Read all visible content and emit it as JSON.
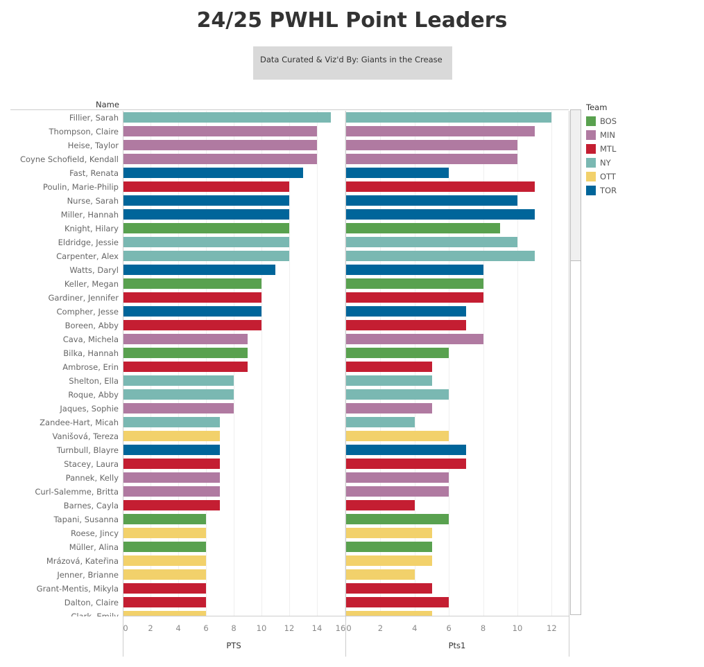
{
  "title": "24/25 PWHL Point Leaders",
  "credit": "Data Curated & Viz'd By: Giants in the Crease",
  "name_header": "Name",
  "legend": {
    "title": "Team",
    "items": [
      {
        "team": "BOS",
        "color": "#59a14f"
      },
      {
        "team": "MIN",
        "color": "#b07aa1"
      },
      {
        "team": "MTL",
        "color": "#c41e32"
      },
      {
        "team": "NY",
        "color": "#7ab8b2"
      },
      {
        "team": "OTT",
        "color": "#f2d16b"
      },
      {
        "team": "TOR",
        "color": "#00659a"
      }
    ]
  },
  "chart_data": {
    "type": "bar",
    "orientation": "horizontal",
    "series": [
      {
        "name": "PTS",
        "axis_title": "PTS",
        "xlim": [
          0,
          16
        ],
        "ticks": [
          0,
          2,
          4,
          6,
          8,
          10,
          12,
          14,
          16
        ]
      },
      {
        "name": "Pts1",
        "axis_title": "Pts1",
        "xlim": [
          0,
          13
        ],
        "ticks": [
          0,
          2,
          4,
          6,
          8,
          10,
          12
        ]
      }
    ],
    "rows": [
      [
        "Fillier, Sarah",
        "NY",
        15,
        12
      ],
      [
        "Thompson, Claire",
        "MIN",
        14,
        11
      ],
      [
        "Heise, Taylor",
        "MIN",
        14,
        10
      ],
      [
        "Coyne Schofield, Kendall",
        "MIN",
        14,
        10
      ],
      [
        "Fast, Renata",
        "TOR",
        13,
        6
      ],
      [
        "Poulin, Marie-Philip",
        "MTL",
        12,
        11
      ],
      [
        "Nurse, Sarah",
        "TOR",
        12,
        10
      ],
      [
        "Miller, Hannah",
        "TOR",
        12,
        11
      ],
      [
        "Knight, Hilary",
        "BOS",
        12,
        9
      ],
      [
        "Eldridge, Jessie",
        "NY",
        12,
        10
      ],
      [
        "Carpenter, Alex",
        "NY",
        12,
        11
      ],
      [
        "Watts, Daryl",
        "TOR",
        11,
        8
      ],
      [
        "Keller, Megan",
        "BOS",
        10,
        8
      ],
      [
        "Gardiner, Jennifer",
        "MTL",
        10,
        8
      ],
      [
        "Compher, Jesse",
        "TOR",
        10,
        7
      ],
      [
        "Boreen, Abby",
        "MTL",
        10,
        7
      ],
      [
        "Cava, Michela",
        "MIN",
        9,
        8
      ],
      [
        "Bilka, Hannah",
        "BOS",
        9,
        6
      ],
      [
        "Ambrose, Erin",
        "MTL",
        9,
        5
      ],
      [
        "Shelton, Ella",
        "NY",
        8,
        5
      ],
      [
        "Roque, Abby",
        "NY",
        8,
        6
      ],
      [
        "Jaques, Sophie",
        "MIN",
        8,
        5
      ],
      [
        "Zandee-Hart, Micah",
        "NY",
        7,
        4
      ],
      [
        "Vanišová, Tereza",
        "OTT",
        7,
        6
      ],
      [
        "Turnbull, Blayre",
        "TOR",
        7,
        7
      ],
      [
        "Stacey, Laura",
        "MTL",
        7,
        7
      ],
      [
        "Pannek, Kelly",
        "MIN",
        7,
        6
      ],
      [
        "Curl-Salemme, Britta",
        "MIN",
        7,
        6
      ],
      [
        "Barnes, Cayla",
        "MTL",
        7,
        4
      ],
      [
        "Tapani, Susanna",
        "BOS",
        6,
        6
      ],
      [
        "Roese, Jincy",
        "OTT",
        6,
        5
      ],
      [
        "Müller, Alina",
        "BOS",
        6,
        5
      ],
      [
        "Mrázová, Kateřina",
        "OTT",
        6,
        5
      ],
      [
        "Jenner, Brianne",
        "OTT",
        6,
        4
      ],
      [
        "Grant-Mentis, Mikyla",
        "MTL",
        6,
        5
      ],
      [
        "Dalton, Claire",
        "MTL",
        6,
        6
      ],
      [
        "Clark, Emily",
        "OTT",
        6,
        5
      ]
    ]
  }
}
